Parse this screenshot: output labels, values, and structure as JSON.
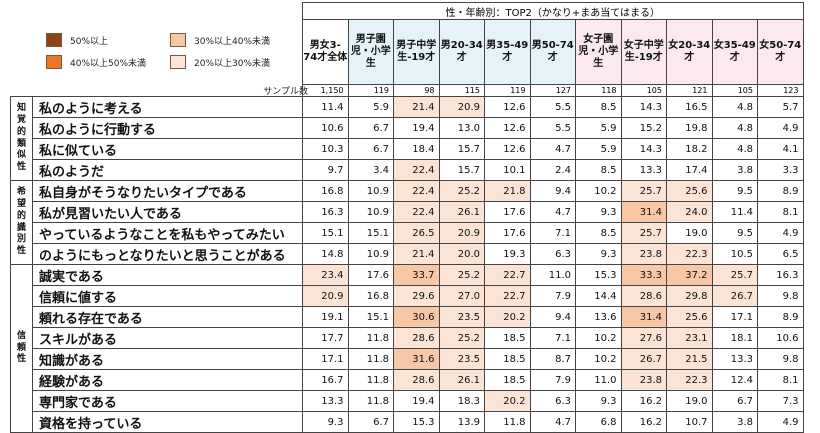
{
  "legend": [
    {
      "label": "50%以上",
      "color": "#8b4513"
    },
    {
      "label": "30%以上40%未満",
      "color": "#f7c7a6"
    },
    {
      "label": "40%以上50%未満",
      "color": "#e97525"
    },
    {
      "label": "20%以上30%未満",
      "color": "#fbe4d5"
    }
  ],
  "header_title": "性・年齢別：TOP2（かなり+まあ当てはまる）",
  "sample_label": "サンプル数",
  "columns": [
    {
      "label": "男女3-74才全体",
      "group": "t"
    },
    {
      "label": "男子園児・小学生",
      "group": "m"
    },
    {
      "label": "男子中学生-19才",
      "group": "m"
    },
    {
      "label": "男20-34才",
      "group": "m"
    },
    {
      "label": "男35-49才",
      "group": "m"
    },
    {
      "label": "男50-74才",
      "group": "m"
    },
    {
      "label": "女子園児・小学生",
      "group": "f"
    },
    {
      "label": "女子中学生-19才",
      "group": "f"
    },
    {
      "label": "女20-34才",
      "group": "f"
    },
    {
      "label": "女35-49才",
      "group": "f"
    },
    {
      "label": "女50-74才",
      "group": "f"
    }
  ],
  "samples": [
    "1,150",
    "119",
    "98",
    "115",
    "119",
    "127",
    "118",
    "105",
    "121",
    "105",
    "123"
  ],
  "groups": [
    {
      "label": "知覚的類似性",
      "span": 4
    },
    {
      "label": "希望的識別性",
      "span": 4
    },
    {
      "label": "信頼性",
      "span": 8
    }
  ],
  "rows": [
    {
      "label": "私のように考える",
      "values": [
        "11.4",
        "5.9",
        "21.4",
        "20.9",
        "12.6",
        "5.5",
        "8.5",
        "14.3",
        "16.5",
        "4.8",
        "5.7"
      ],
      "levels": [
        0,
        0,
        1,
        1,
        0,
        0,
        0,
        0,
        0,
        0,
        0
      ]
    },
    {
      "label": "私のように行動する",
      "values": [
        "10.6",
        "6.7",
        "19.4",
        "13.0",
        "12.6",
        "5.5",
        "5.9",
        "15.2",
        "19.8",
        "4.8",
        "4.9"
      ],
      "levels": [
        0,
        0,
        0,
        0,
        0,
        0,
        0,
        0,
        0,
        0,
        0
      ]
    },
    {
      "label": "私に似ている",
      "values": [
        "10.3",
        "6.7",
        "18.4",
        "15.7",
        "12.6",
        "4.7",
        "5.9",
        "14.3",
        "18.2",
        "4.8",
        "4.1"
      ],
      "levels": [
        0,
        0,
        0,
        0,
        0,
        0,
        0,
        0,
        0,
        0,
        0
      ]
    },
    {
      "label": "私のようだ",
      "values": [
        "9.7",
        "3.4",
        "22.4",
        "15.7",
        "10.1",
        "2.4",
        "8.5",
        "13.3",
        "17.4",
        "3.8",
        "3.3"
      ],
      "levels": [
        0,
        0,
        1,
        0,
        0,
        0,
        0,
        0,
        0,
        0,
        0
      ]
    },
    {
      "label": "私自身がそうなりたいタイプである",
      "values": [
        "16.8",
        "10.9",
        "22.4",
        "25.2",
        "21.8",
        "9.4",
        "10.2",
        "25.7",
        "25.6",
        "9.5",
        "8.9"
      ],
      "levels": [
        0,
        0,
        1,
        1,
        1,
        0,
        0,
        1,
        1,
        0,
        0
      ]
    },
    {
      "label": "私が見習いたい人である",
      "values": [
        "16.3",
        "10.9",
        "22.4",
        "26.1",
        "17.6",
        "4.7",
        "9.3",
        "31.4",
        "24.0",
        "11.4",
        "8.1"
      ],
      "levels": [
        0,
        0,
        1,
        1,
        0,
        0,
        0,
        2,
        1,
        0,
        0
      ]
    },
    {
      "label": "やっているようなことを私もやってみたい",
      "values": [
        "15.1",
        "15.1",
        "26.5",
        "20.9",
        "17.6",
        "7.1",
        "8.5",
        "25.7",
        "19.0",
        "9.5",
        "4.9"
      ],
      "levels": [
        0,
        0,
        1,
        1,
        0,
        0,
        0,
        1,
        0,
        0,
        0
      ]
    },
    {
      "label": "のようにもっとなりたいと思うことがある",
      "values": [
        "14.8",
        "10.9",
        "21.4",
        "20.0",
        "19.3",
        "6.3",
        "9.3",
        "23.8",
        "22.3",
        "10.5",
        "6.5"
      ],
      "levels": [
        0,
        0,
        1,
        1,
        0,
        0,
        0,
        1,
        1,
        0,
        0
      ]
    },
    {
      "label": "誠実である",
      "values": [
        "23.4",
        "17.6",
        "33.7",
        "25.2",
        "22.7",
        "11.0",
        "15.3",
        "33.3",
        "37.2",
        "25.7",
        "16.3"
      ],
      "levels": [
        1,
        0,
        2,
        1,
        1,
        0,
        0,
        2,
        2,
        1,
        0
      ]
    },
    {
      "label": "信頼に値する",
      "values": [
        "20.9",
        "16.8",
        "29.6",
        "27.0",
        "22.7",
        "7.9",
        "14.4",
        "28.6",
        "29.8",
        "26.7",
        "9.8"
      ],
      "levels": [
        1,
        0,
        1,
        1,
        1,
        0,
        0,
        1,
        1,
        1,
        0
      ]
    },
    {
      "label": "頼れる存在である",
      "values": [
        "19.1",
        "15.1",
        "30.6",
        "23.5",
        "20.2",
        "9.4",
        "13.6",
        "31.4",
        "25.6",
        "17.1",
        "8.9"
      ],
      "levels": [
        0,
        0,
        2,
        1,
        1,
        0,
        0,
        2,
        1,
        0,
        0
      ]
    },
    {
      "label": "スキルがある",
      "values": [
        "17.7",
        "11.8",
        "28.6",
        "25.2",
        "18.5",
        "7.1",
        "10.2",
        "27.6",
        "23.1",
        "18.1",
        "10.6"
      ],
      "levels": [
        0,
        0,
        1,
        1,
        0,
        0,
        0,
        1,
        1,
        0,
        0
      ]
    },
    {
      "label": "知識がある",
      "values": [
        "17.1",
        "11.8",
        "31.6",
        "23.5",
        "18.5",
        "8.7",
        "10.2",
        "26.7",
        "21.5",
        "13.3",
        "9.8"
      ],
      "levels": [
        0,
        0,
        2,
        1,
        0,
        0,
        0,
        1,
        1,
        0,
        0
      ]
    },
    {
      "label": "経験がある",
      "values": [
        "16.7",
        "11.8",
        "28.6",
        "26.1",
        "18.5",
        "7.9",
        "11.0",
        "23.8",
        "22.3",
        "12.4",
        "8.1"
      ],
      "levels": [
        0,
        0,
        1,
        1,
        0,
        0,
        0,
        1,
        1,
        0,
        0
      ]
    },
    {
      "label": "専門家である",
      "values": [
        "13.3",
        "11.8",
        "19.4",
        "18.3",
        "20.2",
        "6.3",
        "9.3",
        "16.2",
        "19.0",
        "6.7",
        "7.3"
      ],
      "levels": [
        0,
        0,
        0,
        0,
        1,
        0,
        0,
        0,
        0,
        0,
        0
      ]
    },
    {
      "label": "資格を持っている",
      "values": [
        "9.3",
        "6.7",
        "15.3",
        "13.9",
        "11.8",
        "4.7",
        "6.8",
        "16.2",
        "10.7",
        "3.8",
        "4.9"
      ],
      "levels": [
        0,
        0,
        0,
        0,
        0,
        0,
        0,
        0,
        0,
        0,
        0
      ]
    }
  ]
}
